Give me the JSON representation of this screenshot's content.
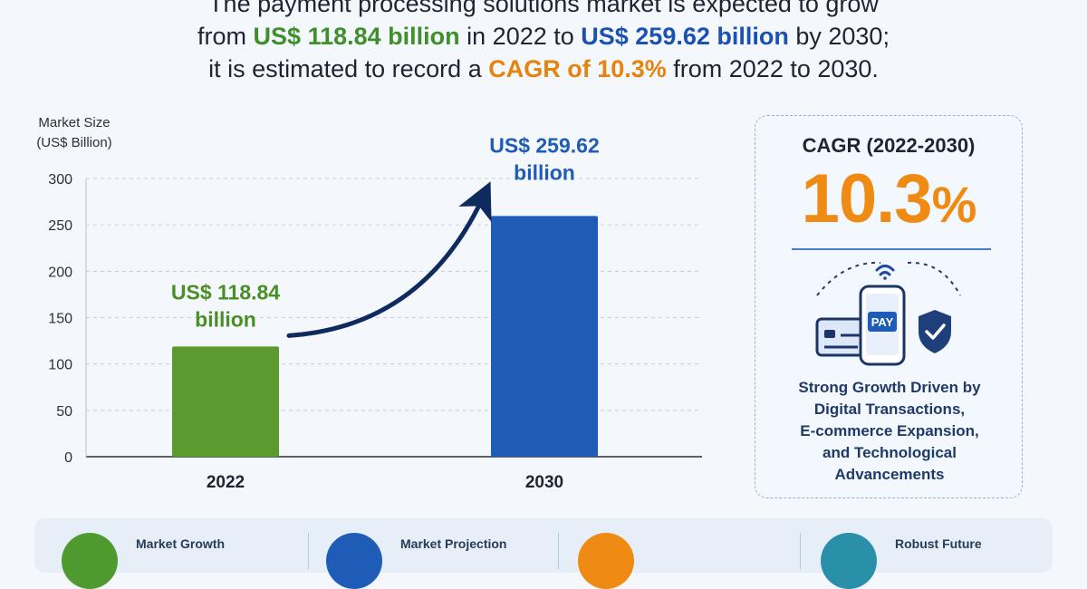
{
  "headline": {
    "line1": "The payment processing solutions market is expected to grow",
    "line2_pre": "from ",
    "line2_value_2022": "US$ 118.84 billion",
    "line2_mid": " in 2022 to ",
    "line2_value_2030": "US$ 259.62 billion",
    "line2_post": " by 2030;",
    "line3_pre": "it is estimated to record a ",
    "line3_cagr": "CAGR of 10.3%",
    "line3_post": " from 2022 to 2030."
  },
  "chart_data": {
    "type": "bar",
    "ylabel_line1": "Market Size",
    "ylabel_line2": "(US$ Billion)",
    "ylim": [
      0,
      300
    ],
    "yticks": [
      0,
      50,
      100,
      150,
      200,
      250,
      300
    ],
    "grid": true,
    "categories": [
      "2022",
      "2030"
    ],
    "values": [
      118.84,
      259.62
    ],
    "data_labels": [
      {
        "line1": "US$ 118.84",
        "line2": "billion"
      },
      {
        "line1": "US$ 259.62",
        "line2": "billion"
      }
    ],
    "colors": [
      "#5b9a2e",
      "#1f5cb8"
    ],
    "label_colors": [
      "#4a8f24",
      "#1f5cb8"
    ],
    "arrow_color": "#0f2a5c"
  },
  "cagr_card": {
    "title": "CAGR (2022-2030)",
    "value": "10.3",
    "unit": "%",
    "pay_label": "PAY",
    "description_lines": [
      "Strong Growth Driven by",
      "Digital Transactions,",
      "E-commerce Expansion,",
      "and Technological",
      "Advancements"
    ]
  },
  "bottom_strip": {
    "items": [
      {
        "label": "Market Growth",
        "color": "#4f9a2e"
      },
      {
        "label": "Market Projection",
        "color": "#1f5cb8"
      },
      {
        "label": "",
        "color": "#ef8a12"
      },
      {
        "label": "Robust Future",
        "color": "#2a8fa8"
      }
    ]
  }
}
